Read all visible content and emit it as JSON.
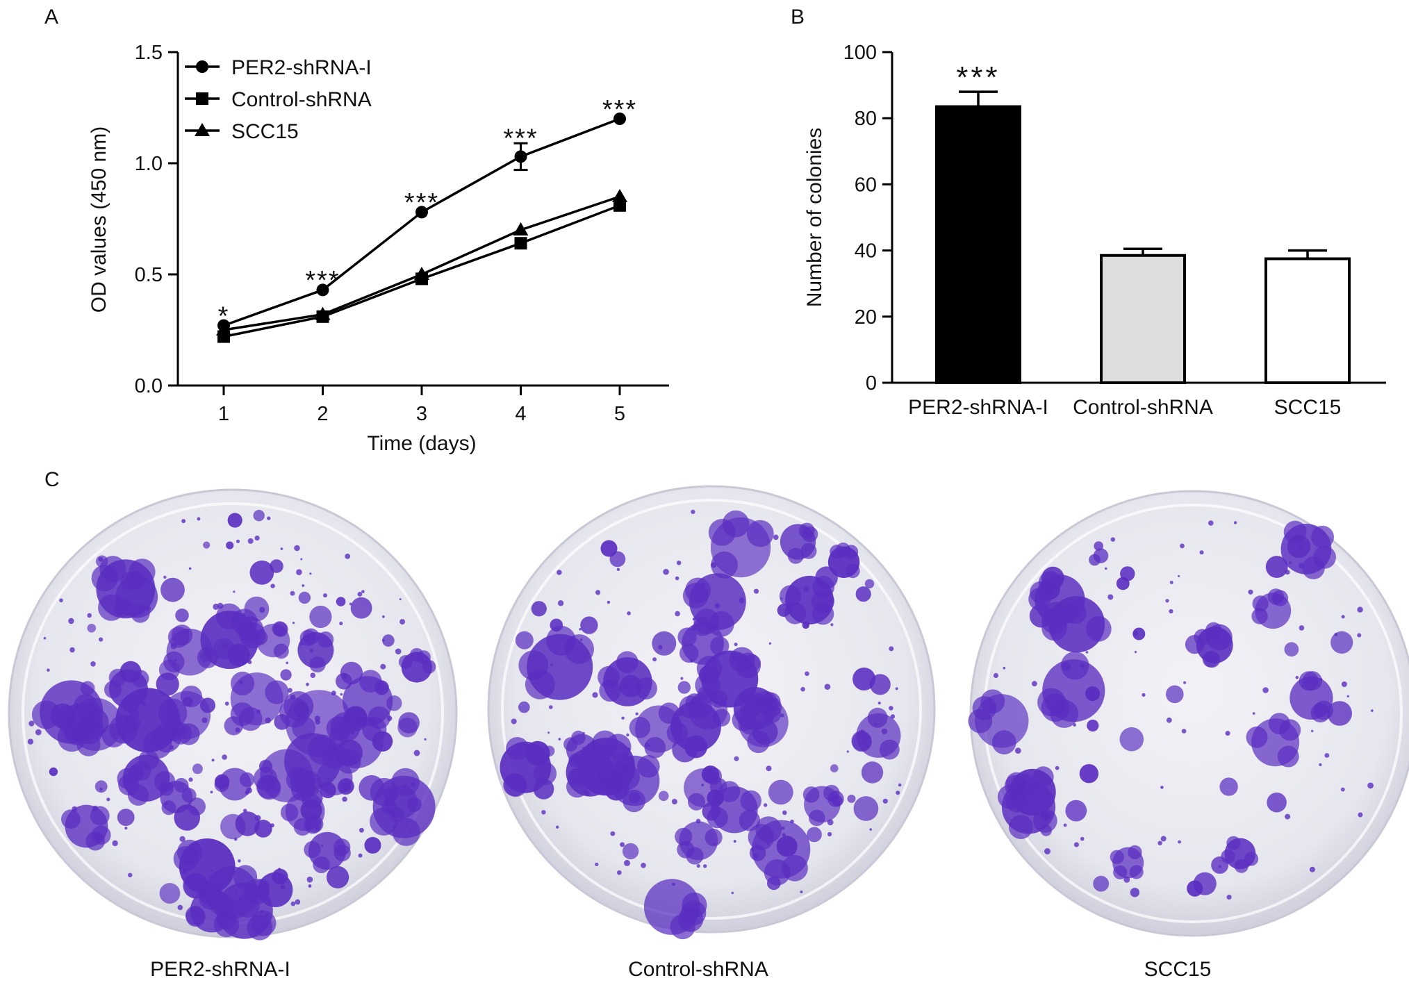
{
  "panels": {
    "a": "A",
    "b": "B",
    "c": "C"
  },
  "chart_data": [
    {
      "type": "line",
      "x": [
        1,
        2,
        3,
        4,
        5
      ],
      "xticks": [
        "1",
        "2",
        "3",
        "4",
        "5"
      ],
      "xlabel": "Time (days)",
      "ylabel": "OD values (450 nm)",
      "ylim": [
        0.0,
        1.5
      ],
      "yticks": [
        "0.0",
        "0.5",
        "1.0",
        "1.5"
      ],
      "legend_position": "top-left",
      "series": [
        {
          "name": "PER2-shRNA-I",
          "marker": "circle",
          "values": [
            0.27,
            0.43,
            0.78,
            1.03,
            1.2
          ],
          "errors": [
            0.01,
            0.01,
            0.01,
            0.06,
            0.01
          ]
        },
        {
          "name": "Control-shRNA",
          "marker": "square",
          "values": [
            0.22,
            0.31,
            0.48,
            0.64,
            0.81
          ],
          "errors": [
            0.01,
            0.01,
            0.01,
            0.01,
            0.01
          ]
        },
        {
          "name": "SCC15",
          "marker": "triangle",
          "values": [
            0.25,
            0.32,
            0.5,
            0.7,
            0.85
          ],
          "errors": [
            0.01,
            0.01,
            0.01,
            0.01,
            0.01
          ]
        }
      ],
      "annotations": [
        "*",
        "***",
        "***",
        "***",
        "***"
      ]
    },
    {
      "type": "bar",
      "categories": [
        "PER2-shRNA-I",
        "Control-shRNA",
        "SCC15"
      ],
      "values": [
        83.5,
        38.5,
        37.5
      ],
      "errors": [
        4.5,
        2.0,
        2.5
      ],
      "colors": [
        "#000000",
        "#dddddd",
        "#ffffff"
      ],
      "ylabel": "Number of colonies",
      "ylim": [
        0,
        100
      ],
      "yticks": [
        "0",
        "20",
        "40",
        "60",
        "80",
        "100"
      ],
      "annotations": [
        "***",
        "",
        ""
      ]
    }
  ],
  "plates": [
    {
      "label": "PER2-shRNA-I"
    },
    {
      "label": "Control-shRNA"
    },
    {
      "label": "SCC15"
    }
  ],
  "colors": {
    "stain": "#5a2ec0",
    "plate": "#e9e9f1"
  }
}
